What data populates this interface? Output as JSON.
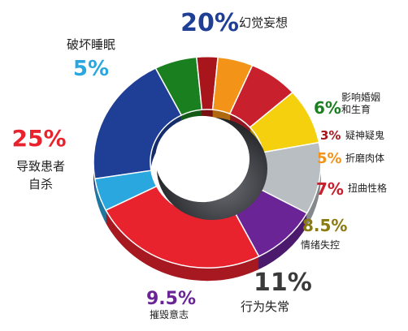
{
  "chart_data": {
    "type": "pie",
    "style": "3d-donut",
    "title": "",
    "legend": "none",
    "slices": [
      {
        "label": "幻觉妄想",
        "value": 20,
        "value_label": "20%",
        "color": "#1f3f96"
      },
      {
        "label": "影响婚姻和生育",
        "label_lines": [
          "影响婚姻",
          "和生育"
        ],
        "value": 6,
        "value_label": "6%",
        "color": "#1a7f1f"
      },
      {
        "label": "疑神疑鬼",
        "value": 3,
        "value_label": "3%",
        "color": "#a8161c"
      },
      {
        "label": "折磨肉体",
        "value": 5,
        "value_label": "5%",
        "color": "#f39318"
      },
      {
        "label": "扭曲性格",
        "value": 7,
        "value_label": "7%",
        "color": "#c8202c"
      },
      {
        "label": "情绪失控",
        "value": 8.5,
        "value_label": "8.5%",
        "color": "#f5d00f"
      },
      {
        "label": "行为失常",
        "value": 11,
        "value_label": "11%",
        "color": "#b9bec3"
      },
      {
        "label": "摧毁意志",
        "value": 9.5,
        "value_label": "9.5%",
        "color": "#6a2496"
      },
      {
        "label": "导致患者自杀",
        "label_lines": [
          "导致患者",
          "自杀"
        ],
        "value": 25,
        "value_label": "25%",
        "color": "#e8232d"
      },
      {
        "label": "破坏睡眠",
        "value": 5,
        "value_label": "5%",
        "color": "#2aa7df"
      }
    ]
  }
}
